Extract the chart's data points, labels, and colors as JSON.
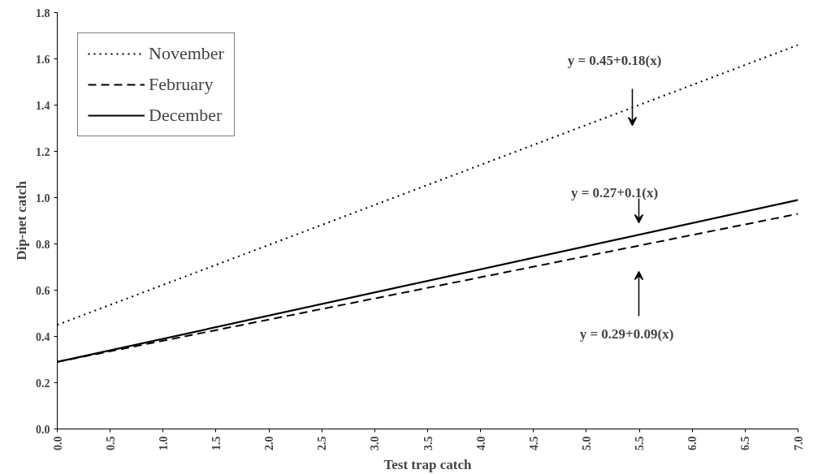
{
  "chart_data": {
    "type": "line",
    "xlabel": "Test trap catch",
    "ylabel": "Dip-net catch",
    "x": [
      0,
      7
    ],
    "series": [
      {
        "name": "November",
        "color": "#000000",
        "line_style": "dotted",
        "values": [
          0.45,
          1.66
        ]
      },
      {
        "name": "February",
        "color": "#000000",
        "line_style": "dashed",
        "values": [
          0.29,
          0.93
        ]
      },
      {
        "name": "December",
        "color": "#000000",
        "line_style": "solid",
        "values": [
          0.29,
          0.99
        ]
      }
    ],
    "xlim": [
      0,
      7
    ],
    "ylim": [
      0,
      1.8
    ],
    "xticks": [
      {
        "value": 0,
        "label": "0.0"
      },
      0.5,
      {
        "value": 1,
        "label": "1.0"
      },
      1.5,
      {
        "value": 2,
        "label": "2.0"
      },
      2.5,
      {
        "value": 3,
        "label": "3.0"
      },
      3.5,
      {
        "value": 4,
        "label": "4.0"
      },
      4.5,
      {
        "value": 5,
        "label": "5.0"
      },
      5.5,
      {
        "value": 6,
        "label": "6.0"
      },
      6.5,
      {
        "value": 7,
        "label": "7.0"
      }
    ],
    "yticks": [
      {
        "value": 0,
        "label": "0.0"
      },
      0.2,
      0.4,
      0.6,
      0.8,
      {
        "value": 1,
        "label": "1.0"
      },
      1.2,
      1.4,
      1.6,
      1.8
    ],
    "annotations": [
      "y = 0.45+0.18(x)",
      "y = 0.27+0.1(x)",
      "y = 0.29+0.09(x)"
    ],
    "grid": false,
    "legend": "top left"
  }
}
